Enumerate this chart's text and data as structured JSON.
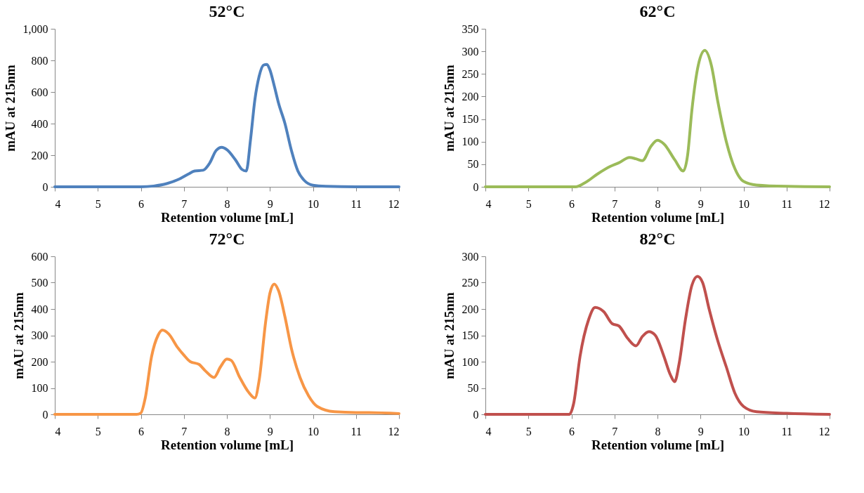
{
  "chart_data": [
    {
      "type": "line",
      "title": "52°C",
      "xlabel": "Retention volume [mL]",
      "ylabel": "mAU at 215nm",
      "xlim": [
        4,
        12
      ],
      "xticks": [
        4,
        5,
        6,
        7,
        8,
        9,
        10,
        11,
        12
      ],
      "ylim": [
        0,
        1000
      ],
      "yticks": [
        0,
        200,
        400,
        600,
        800,
        {
          "value": 1000,
          "label": "1,000"
        }
      ],
      "grid": false,
      "line_style": "solid",
      "marker": "none",
      "series": [
        {
          "color": "#4f81bd",
          "x": [
            4,
            5,
            6,
            6.3,
            6.6,
            6.9,
            7.1,
            7.25,
            7.45,
            7.6,
            7.75,
            7.88,
            8.0,
            8.2,
            8.35,
            8.45,
            8.55,
            8.65,
            8.75,
            8.85,
            8.93,
            9.0,
            9.1,
            9.2,
            9.35,
            9.5,
            9.65,
            9.8,
            10,
            10.3,
            11,
            12
          ],
          "values": [
            0,
            0,
            0,
            5,
            20,
            50,
            80,
            100,
            105,
            150,
            230,
            250,
            235,
            170,
            110,
            100,
            300,
            550,
            700,
            770,
            775,
            740,
            640,
            530,
            400,
            230,
            100,
            40,
            10,
            3,
            0,
            0
          ]
        }
      ]
    },
    {
      "type": "line",
      "title": "62°C",
      "xlabel": "Retention volume [mL]",
      "ylabel": "mAU at 215nm",
      "xlim": [
        4,
        12
      ],
      "xticks": [
        4,
        5,
        6,
        7,
        8,
        9,
        10,
        11,
        12
      ],
      "ylim": [
        0,
        350
      ],
      "yticks": [
        0,
        50,
        100,
        150,
        200,
        250,
        300,
        350
      ],
      "grid": false,
      "line_style": "solid",
      "marker": "none",
      "series": [
        {
          "color": "#9bbb59",
          "x": [
            4,
            5,
            6.1,
            6.3,
            6.6,
            6.9,
            7.1,
            7.35,
            7.5,
            7.65,
            7.85,
            8.0,
            8.15,
            8.4,
            8.6,
            8.7,
            8.8,
            8.95,
            9.1,
            9.25,
            9.4,
            9.6,
            9.8,
            10.0,
            10.3,
            11,
            12
          ],
          "values": [
            0,
            0,
            0,
            8,
            28,
            45,
            53,
            65,
            62,
            58,
            90,
            103,
            95,
            60,
            35,
            70,
            170,
            270,
            302,
            270,
            190,
            100,
            40,
            12,
            4,
            1,
            0
          ]
        }
      ]
    },
    {
      "type": "line",
      "title": "72°C",
      "xlabel": "Retention volume [mL]",
      "ylabel": "mAU at 215nm",
      "xlim": [
        4,
        12
      ],
      "xticks": [
        4,
        5,
        6,
        7,
        8,
        9,
        10,
        11,
        12
      ],
      "ylim": [
        0,
        600
      ],
      "yticks": [
        0,
        100,
        200,
        300,
        400,
        500,
        600
      ],
      "grid": false,
      "line_style": "solid",
      "marker": "none",
      "series": [
        {
          "color": "#f79646",
          "x": [
            4,
            5,
            5.9,
            6.0,
            6.1,
            6.25,
            6.4,
            6.5,
            6.65,
            6.85,
            7.0,
            7.15,
            7.35,
            7.5,
            7.7,
            7.85,
            8.0,
            8.1,
            8.3,
            8.5,
            8.65,
            8.75,
            8.9,
            9.0,
            9.1,
            9.2,
            9.35,
            9.5,
            9.7,
            9.9,
            10.1,
            10.5,
            11,
            11.3,
            12
          ],
          "values": [
            0,
            0,
            0,
            5,
            60,
            220,
            300,
            320,
            305,
            255,
            225,
            200,
            190,
            165,
            140,
            180,
            210,
            205,
            140,
            85,
            62,
            130,
            350,
            460,
            495,
            470,
            370,
            250,
            140,
            70,
            30,
            10,
            7,
            7,
            3
          ]
        }
      ]
    },
    {
      "type": "line",
      "title": "82°C",
      "xlabel": "Retention volume [mL]",
      "ylabel": "mAU at 215nm",
      "xlim": [
        4,
        12
      ],
      "xticks": [
        4,
        5,
        6,
        7,
        8,
        9,
        10,
        11,
        12
      ],
      "ylim": [
        0,
        300
      ],
      "yticks": [
        0,
        50,
        100,
        150,
        200,
        250,
        300
      ],
      "grid": false,
      "line_style": "solid",
      "marker": "none",
      "series": [
        {
          "color": "#c0504d",
          "x": [
            4,
            5,
            5.95,
            6.05,
            6.2,
            6.4,
            6.55,
            6.75,
            6.95,
            7.1,
            7.3,
            7.5,
            7.65,
            7.8,
            7.95,
            8.15,
            8.3,
            8.4,
            8.5,
            8.65,
            8.8,
            8.93,
            9.05,
            9.2,
            9.4,
            9.6,
            9.8,
            10.0,
            10.3,
            11,
            12
          ],
          "values": [
            0,
            0,
            0,
            20,
            110,
            180,
            203,
            195,
            172,
            168,
            145,
            130,
            148,
            157,
            150,
            110,
            75,
            62,
            95,
            180,
            245,
            262,
            250,
            200,
            140,
            90,
            40,
            15,
            5,
            2,
            0
          ]
        }
      ]
    }
  ]
}
